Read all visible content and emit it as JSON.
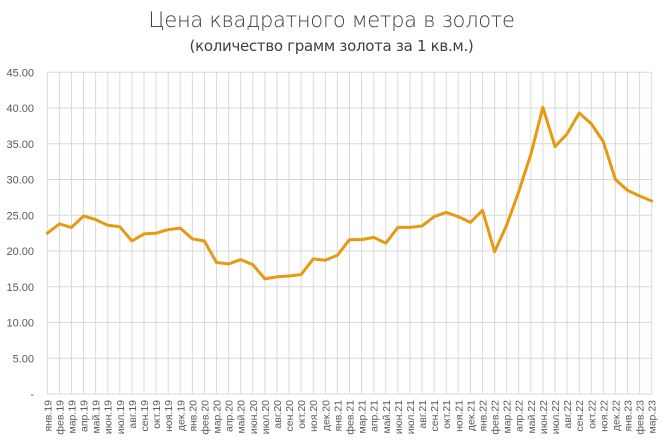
{
  "chart_data": {
    "type": "line",
    "title": "Цена квадратного метра в золоте",
    "subtitle": "(количество грамм золота за 1 кв.м.)",
    "xlabel": "",
    "ylabel": "",
    "ylim": [
      0,
      45
    ],
    "yticks": [
      0,
      5,
      10,
      15,
      20,
      25,
      30,
      35,
      40,
      45
    ],
    "ytick_labels": [
      "-",
      "5.00",
      "10.00",
      "15.00",
      "20.00",
      "25.00",
      "30.00",
      "35.00",
      "40.00",
      "45.00"
    ],
    "grid": true,
    "legend": null,
    "line_color": "#E69A12",
    "grid_color": "#D9D9D9",
    "categories": [
      "янв.19",
      "фев.19",
      "мар.19",
      "апр.19",
      "май.19",
      "июн.19",
      "июл.19",
      "авг.19",
      "сен.19",
      "окт.19",
      "ноя.19",
      "дек.19",
      "янв.20",
      "фев.20",
      "мар.20",
      "апр.20",
      "май.20",
      "июн.20",
      "июл.20",
      "авг.20",
      "сен.20",
      "окт.20",
      "ноя.20",
      "дек.20",
      "янв.21",
      "фев.21",
      "мар.21",
      "апр.21",
      "май.21",
      "июн.21",
      "июл.21",
      "авг.21",
      "сен.21",
      "окт.21",
      "ноя.21",
      "дек.21",
      "янв.22",
      "фев.22",
      "мар.22",
      "апр.22",
      "май.22",
      "июн.22",
      "июл.22",
      "авг.22",
      "сен.22",
      "окт.22",
      "ноя.22",
      "дек.22",
      "янв.23",
      "фев.23",
      "мар.23"
    ],
    "series": [
      {
        "name": "Цена квадратного метра в золоте",
        "values": [
          22.5,
          23.8,
          23.3,
          24.9,
          24.4,
          23.6,
          23.4,
          21.4,
          22.4,
          22.5,
          23.0,
          23.2,
          21.7,
          21.4,
          18.4,
          18.2,
          18.8,
          18.1,
          16.1,
          16.4,
          16.5,
          16.7,
          18.9,
          18.7,
          19.4,
          21.6,
          21.6,
          21.9,
          21.1,
          23.3,
          23.3,
          23.5,
          24.8,
          25.4,
          24.8,
          24.0,
          25.7,
          19.9,
          23.6,
          28.3,
          33.5,
          40.1,
          34.6,
          36.4,
          39.3,
          37.8,
          35.3,
          30.0,
          28.5,
          27.7,
          27.0
        ]
      }
    ]
  }
}
